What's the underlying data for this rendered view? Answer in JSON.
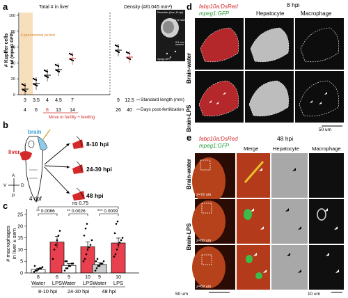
{
  "panel_labels": {
    "a": "a",
    "b": "b",
    "c": "c",
    "d": "d",
    "e": "e"
  },
  "panel_a": {
    "header_left": "Total # in liver",
    "header_right": "Density (#/0.045 mm²)",
    "ylabel": "# Kupffer cells",
    "ylabel2": "± sd (mpeg1:GFP)",
    "experimental_period": "Experimental period",
    "y_ticks": [
      "0",
      "20",
      "40",
      "60",
      "80",
      "100"
    ],
    "sl_labels": [
      "3",
      "3.5",
      "4",
      "4.5",
      "7",
      "9",
      "12.5"
    ],
    "sl_caption": "Standard length (mm)",
    "dpf_labels": [
      "4",
      "6",
      "8",
      "13",
      "14",
      "26",
      "40"
    ],
    "dpf_caption": "Days post-fertilization",
    "move_facility": "Move to facility + feeding",
    "inset_labels": [
      "Dissection (liver, 40 dpf)",
      "Three lobes",
      "0.5 mm",
      "mpeg1:GFP"
    ]
  },
  "panel_b": {
    "brain_label": "brain",
    "liver_label": "liver",
    "hpi_labels": [
      "8-10 hpi",
      "24-30 hpi",
      "48 hpi"
    ],
    "axis": {
      "A": "A",
      "P": "P",
      "V": "V",
      "D": "D"
    },
    "stage": "4 dpf"
  },
  "panel_c": {
    "ylabel": "# macrophages",
    "ylabel2": "in liver ± sem",
    "y_ticks": [
      "0",
      "5",
      "10",
      "15",
      "20",
      "25"
    ],
    "ns_label": "ns 0.75",
    "sig_labels": [
      "** 0.0066",
      "** 0.0026",
      "*** 0.0009"
    ],
    "n_labels": [
      "8",
      "6",
      "9",
      "10",
      "9",
      "10"
    ],
    "group_labels": [
      "Water",
      "LPS",
      "Water",
      "LPS",
      "Water",
      "LPS"
    ],
    "time_labels": [
      "8-10 hpi",
      "24-30 hpi",
      "48 hpi"
    ]
  },
  "chart_data": {
    "type": "bar",
    "categories": [
      "8-10 hpi Water",
      "8-10 hpi LPS",
      "24-30 hpi Water",
      "24-30 hpi LPS",
      "48 hpi Water",
      "48 hpi LPS"
    ],
    "values": [
      1.5,
      13.2,
      3.2,
      11.2,
      3.6,
      12.8
    ],
    "errors": [
      0.5,
      2.4,
      0.8,
      2.0,
      0.7,
      2.1
    ],
    "colors": [
      "#ffffff",
      "#e8404e",
      "#ffffff",
      "#e8404e",
      "#cccccc",
      "#e8404e"
    ],
    "points": [
      [
        0.5,
        1,
        1,
        1.5,
        2,
        2,
        2.5,
        3
      ],
      [
        6,
        10,
        12,
        14,
        16,
        18
      ],
      [
        1,
        2,
        2,
        3,
        3,
        4,
        4,
        5,
        5
      ],
      [
        5,
        6,
        8,
        10,
        11,
        12,
        14,
        16,
        19,
        21
      ],
      [
        1,
        2,
        3,
        3,
        4,
        4,
        5,
        5,
        6
      ],
      [
        7,
        8,
        10,
        12,
        13,
        14,
        15,
        17,
        21,
        22
      ]
    ],
    "ylim": [
      0,
      25
    ],
    "ylabel": "# macrophages in liver ± sem"
  },
  "panel_d": {
    "title_red": "fabp10a:DsRed",
    "title_green": "mpeg1:GFP",
    "time": "8 hpi",
    "col_hepatocyte": "Hepatocyte",
    "col_macrophage": "Macrophage",
    "row_water": "Brain-water",
    "row_lps": "Brain-LPS",
    "scale": "50 um"
  },
  "panel_e": {
    "title_red": "fabp10a:DsRed",
    "title_green": "mpeg1:GFP",
    "time": "48 hpi",
    "col_merge": "Merge",
    "col_hepatocyte": "Hepatocyte",
    "col_macrophage": "Macrophage",
    "row_water": "Brain-water",
    "row_lps": "Brain-LPS",
    "z_labels": [
      "z=72 um",
      "z=60 um",
      "z=69 um"
    ],
    "scale_left": "50 um",
    "scale_right": "10 um"
  }
}
